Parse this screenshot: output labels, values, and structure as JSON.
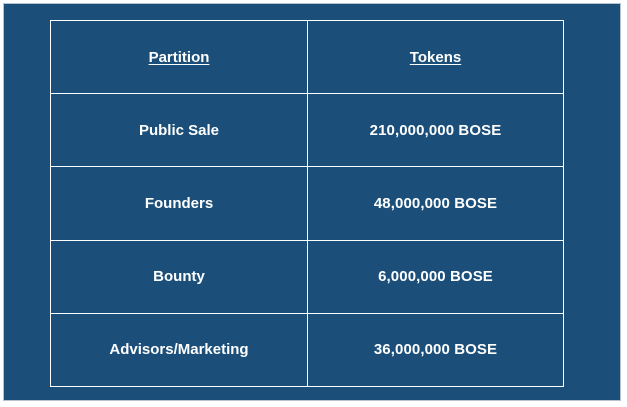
{
  "colors": {
    "panel_background": "#1b4f7a",
    "table_border": "#ffffff",
    "text": "#ffffff"
  },
  "table": {
    "headers": {
      "partition": "Partition",
      "tokens": "Tokens"
    },
    "rows": [
      {
        "partition": "Public Sale",
        "tokens": "210,000,000 BOSE"
      },
      {
        "partition": "Founders",
        "tokens": "48,000,000 BOSE"
      },
      {
        "partition": "Bounty",
        "tokens": "6,000,000 BOSE"
      },
      {
        "partition": "Advisors/Marketing",
        "tokens": "36,000,000 BOSE"
      }
    ]
  }
}
